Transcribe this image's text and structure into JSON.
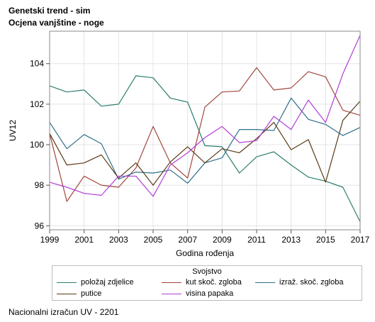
{
  "chart_data": {
    "type": "line",
    "title": "Genetski trend - sim",
    "subtitle": "Ocjena vanjštine - noge",
    "xlabel": "Godina rođenja",
    "ylabel": "UV12",
    "xlim": [
      1999,
      2017
    ],
    "ylim": [
      95.8,
      105.6
    ],
    "x_ticks": [
      1999,
      2001,
      2003,
      2005,
      2007,
      2009,
      2011,
      2013,
      2015,
      2017
    ],
    "y_ticks": [
      96,
      98,
      100,
      102,
      104
    ],
    "grid": true,
    "legend_title": "Svojstvo",
    "legend_position": "bottom",
    "x": [
      1999,
      2000,
      2001,
      2002,
      2003,
      2004,
      2005,
      2006,
      2007,
      2008,
      2009,
      2010,
      2011,
      2012,
      2013,
      2014,
      2015,
      2016,
      2017
    ],
    "series": [
      {
        "name": "položaj zdjelice",
        "color": "#2c7e6e",
        "values": [
          102.9,
          102.6,
          102.7,
          101.9,
          102.0,
          103.4,
          103.3,
          102.3,
          102.1,
          99.95,
          99.9,
          98.6,
          99.4,
          99.65,
          99.0,
          98.4,
          98.2,
          97.9,
          96.2
        ]
      },
      {
        "name": "kut skoč. zgloba",
        "color": "#a2463d",
        "values": [
          100.55,
          97.2,
          98.45,
          98.0,
          97.9,
          98.85,
          100.9,
          99.1,
          98.35,
          101.85,
          102.6,
          102.65,
          103.8,
          102.7,
          102.8,
          103.6,
          103.35,
          101.7,
          101.45
        ]
      },
      {
        "name": "izraž. skoč. zgloba",
        "color": "#2e6f8c",
        "values": [
          101.1,
          99.8,
          100.5,
          100.05,
          98.3,
          98.65,
          98.6,
          98.75,
          98.1,
          99.1,
          99.35,
          100.75,
          100.75,
          100.7,
          102.3,
          101.25,
          101.0,
          100.45,
          100.85
        ]
      },
      {
        "name": "putice",
        "color": "#5c3a16",
        "values": [
          100.55,
          99.0,
          99.1,
          99.5,
          98.35,
          99.1,
          98.0,
          99.15,
          99.9,
          99.1,
          99.8,
          99.6,
          100.3,
          101.1,
          99.75,
          100.25,
          98.15,
          101.2,
          102.15
        ]
      },
      {
        "name": "visina papaka",
        "color": "#b23ed6",
        "values": [
          98.15,
          97.9,
          97.6,
          97.5,
          98.45,
          98.45,
          97.45,
          99.0,
          99.6,
          100.35,
          100.9,
          100.1,
          100.2,
          101.4,
          100.75,
          102.2,
          101.1,
          103.5,
          105.4
        ]
      }
    ]
  },
  "footer": "Nacionalni izračun UV - 2201"
}
